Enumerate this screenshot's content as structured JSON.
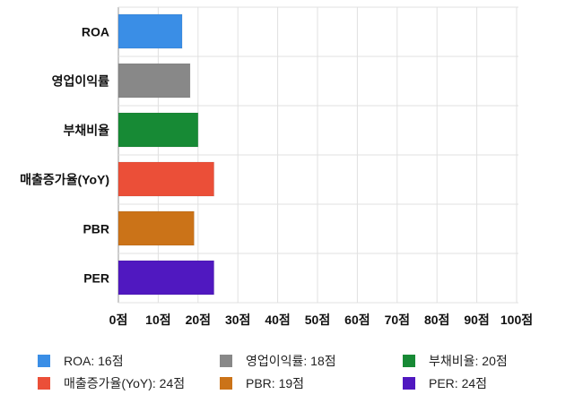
{
  "chart_data": {
    "type": "bar",
    "orientation": "horizontal",
    "categories": [
      "ROA",
      "영업이익률",
      "부채비율",
      "매출증가율(YoY)",
      "PBR",
      "PER"
    ],
    "values": [
      16,
      18,
      20,
      24,
      19,
      24
    ],
    "colors": [
      "#3a8ee6",
      "#888888",
      "#178a35",
      "#eb4f38",
      "#cb7318",
      "#5018c0"
    ],
    "xlim": [
      0,
      100
    ],
    "x_ticks": [
      "0점",
      "10점",
      "20점",
      "30점",
      "40점",
      "50점",
      "60점",
      "70점",
      "80점",
      "90점",
      "100점"
    ],
    "grid": true,
    "legend_position": "bottom",
    "legend": [
      "ROA: 16점",
      "영업이익률: 18점",
      "부채비율: 20점",
      "매출증가율(YoY): 24점",
      "PBR: 19점",
      "PER: 24점"
    ]
  }
}
